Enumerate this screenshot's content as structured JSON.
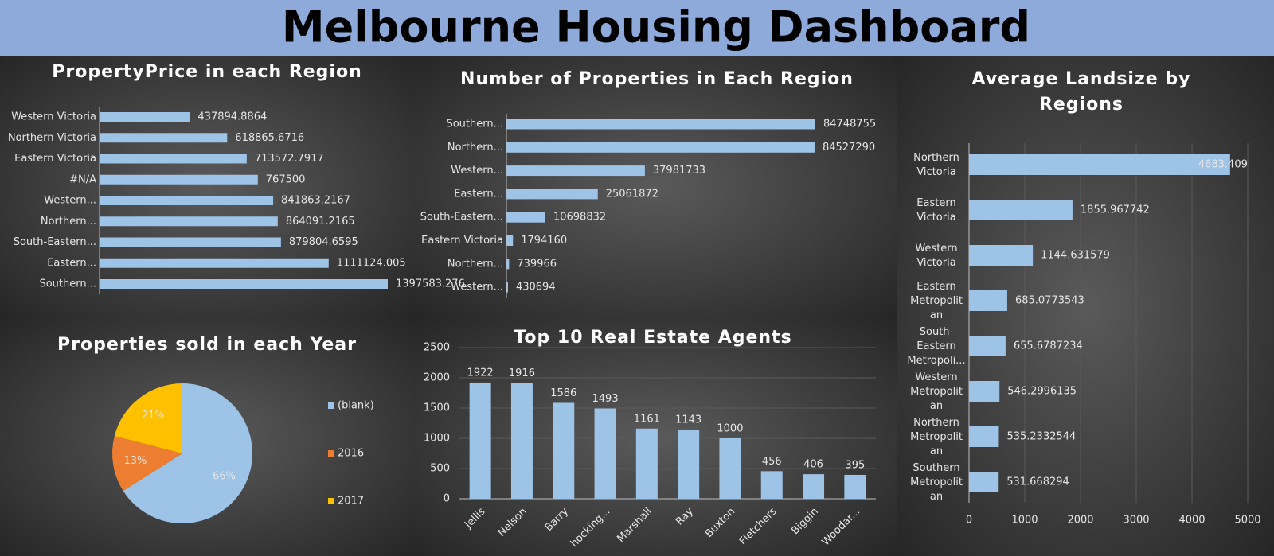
{
  "title": "Melbourne Housing Dashboard",
  "chart_data": [
    {
      "type": "hbar",
      "title": "PropertyPrice in each Region",
      "color": "#9dc3e6",
      "categories": [
        "Western Victoria",
        "Northern Victoria",
        "Eastern Victoria",
        "#N/A",
        "Western...",
        "Northern...",
        "South-Eastern...",
        "Eastern...",
        "Southern..."
      ],
      "values": [
        437894.8864,
        618865.6716,
        713572.7917,
        767500,
        841863.2167,
        864091.2165,
        879804.6595,
        1111124.005,
        1397583.276
      ]
    },
    {
      "type": "hbar",
      "title": "Number of Properties in Each Region",
      "color": "#9dc3e6",
      "categories": [
        "Southern...",
        "Northern...",
        "Western...",
        "Eastern...",
        "South-Eastern...",
        "Eastern Victoria",
        "Northern...",
        "Western..."
      ],
      "values": [
        84748755,
        84527290,
        37981733,
        25061872,
        10698832,
        1794160,
        739966,
        430694
      ]
    },
    {
      "type": "hbar",
      "title": "Average Landsize by Regions",
      "color": "#9dc3e6",
      "categories": [
        "Northern Victoria",
        "Eastern Victoria",
        "Western Victoria",
        "Eastern Metropolitan",
        "South-Eastern Metropoli...",
        "Western Metropolitan",
        "Northern Metropolitan",
        "Southern Metropolitan"
      ],
      "values": [
        4683.409,
        1855.967742,
        1144.631579,
        685.0773543,
        655.6787234,
        546.2996135,
        535.2332544,
        531.668294
      ],
      "xlim": [
        0,
        5000
      ],
      "xticks": [
        0,
        1000,
        2000,
        3000,
        4000,
        5000
      ],
      "grid": true
    },
    {
      "type": "pie",
      "title": "Properties sold in each Year",
      "categories": [
        "(blank)",
        "2016",
        "2017"
      ],
      "values": [
        66,
        13,
        21
      ],
      "value_labels": [
        "66%",
        "13%",
        "21%"
      ],
      "colors": [
        "#9dc3e6",
        "#ed7d31",
        "#ffc000"
      ],
      "legend": "right"
    },
    {
      "type": "bar",
      "title": "Top 10 Real Estate Agents",
      "color": "#9dc3e6",
      "categories": [
        "Jellis",
        "Nelson",
        "Barry",
        "hocking...",
        "Marshall",
        "Ray",
        "Buxton",
        "Fletchers",
        "Biggin",
        "Woodar..."
      ],
      "values": [
        1922,
        1916,
        1586,
        1493,
        1161,
        1143,
        1000,
        456,
        406,
        395
      ],
      "ylim": [
        0,
        2500
      ],
      "yticks": [
        0,
        500,
        1000,
        1500,
        2000,
        2500
      ],
      "grid": true
    }
  ]
}
